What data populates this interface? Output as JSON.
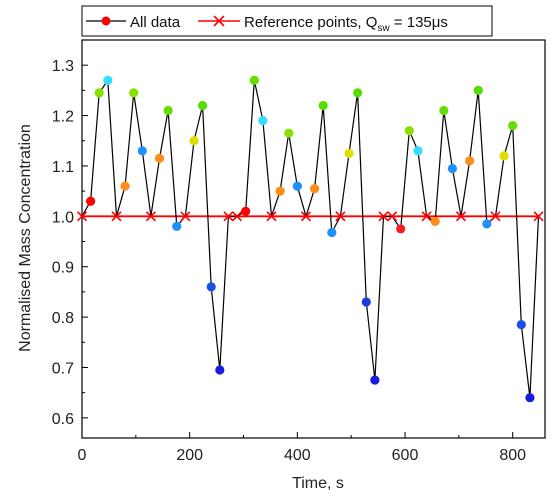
{
  "chart_data": {
    "type": "line",
    "xlabel": "Time, s",
    "ylabel": "Normalised Mass Concentration",
    "xlim": [
      0,
      860
    ],
    "ylim": [
      0.56,
      1.35
    ],
    "xticks": [
      0,
      200,
      400,
      600,
      800
    ],
    "yticks": [
      0.6,
      0.7,
      0.8,
      0.9,
      1.0,
      1.1,
      1.2,
      1.3
    ],
    "xtick_labels": [
      "0",
      "200",
      "400",
      "600",
      "800"
    ],
    "ytick_labels": [
      "0.6",
      "0.7",
      "0.8",
      "0.9",
      "1.0",
      "1.1",
      "1.2",
      "1.3"
    ],
    "grid": false,
    "legend_position": "top",
    "series": [
      {
        "name": "All data",
        "line_color": "#000000",
        "x": [
          0,
          16,
          32,
          48,
          64,
          80,
          96,
          112,
          128,
          144,
          160,
          176,
          192,
          208,
          224,
          240,
          256,
          272,
          288,
          304,
          320,
          336,
          352,
          368,
          384,
          400,
          416,
          432,
          448,
          464,
          480,
          496,
          512,
          528,
          544,
          560,
          576,
          592,
          608,
          624,
          640,
          656,
          672,
          688,
          704,
          720,
          736,
          752,
          768,
          784,
          800,
          816,
          832,
          848
        ],
        "y": [
          1.0,
          1.03,
          1.245,
          1.27,
          1.0,
          1.06,
          1.245,
          1.13,
          1.0,
          1.115,
          1.21,
          0.98,
          1.0,
          1.15,
          1.22,
          0.86,
          0.695,
          1.0,
          1.0,
          1.01,
          1.27,
          1.19,
          1.0,
          1.05,
          1.165,
          1.06,
          1.0,
          1.055,
          1.22,
          0.968,
          1.0,
          1.125,
          1.245,
          0.83,
          0.675,
          1.0,
          1.0,
          0.975,
          1.17,
          1.13,
          1.0,
          0.99,
          1.21,
          1.095,
          1.0,
          1.11,
          1.25,
          0.985,
          1.0,
          1.12,
          1.18,
          0.785,
          0.64,
          1.0
        ],
        "marker_colors": [
          "#ff0000",
          "#ff0000",
          "#88e000",
          "#33ddff",
          "#ff0000",
          "#ff8c1a",
          "#88e000",
          "#1e90ff",
          "#ff0000",
          "#ff8c1a",
          "#66dd00",
          "#1e90ff",
          "#ff0000",
          "#dddd00",
          "#55dd00",
          "#1c4ee8",
          "#1a1ae0",
          "#ff0000",
          "#ff0000",
          "#ff0000",
          "#66dd00",
          "#33ddff",
          "#ff0000",
          "#ff8c1a",
          "#88e000",
          "#1e90ff",
          "#ff0000",
          "#ff8c1a",
          "#55dd00",
          "#1e90ff",
          "#ff0000",
          "#dddd00",
          "#55dd00",
          "#1c3ee0",
          "#1a1ae0",
          "#ff0000",
          "#ff0000",
          "#ee2020",
          "#88e000",
          "#33ddff",
          "#ff0000",
          "#ff8c1a",
          "#66dd00",
          "#1e90ff",
          "#ff0000",
          "#ff8c1a",
          "#55dd00",
          "#1e90ff",
          "#ff0000",
          "#dddd00",
          "#66dd00",
          "#1c4ee8",
          "#1a1ae0",
          "#ff0000"
        ]
      },
      {
        "name": "Reference points, Q",
        "name_subscript": "sw",
        "name_suffix": " = 135μs",
        "line_color": "#ff0000",
        "marker": "x",
        "x": [
          0,
          64,
          128,
          192,
          272,
          288,
          352,
          416,
          480,
          560,
          576,
          640,
          704,
          768,
          848
        ],
        "y": [
          1.0,
          1.0,
          1.0,
          1.0,
          1.0,
          1.0,
          1.0,
          1.0,
          1.0,
          1.0,
          1.0,
          1.0,
          1.0,
          1.0,
          1.0
        ]
      }
    ]
  }
}
